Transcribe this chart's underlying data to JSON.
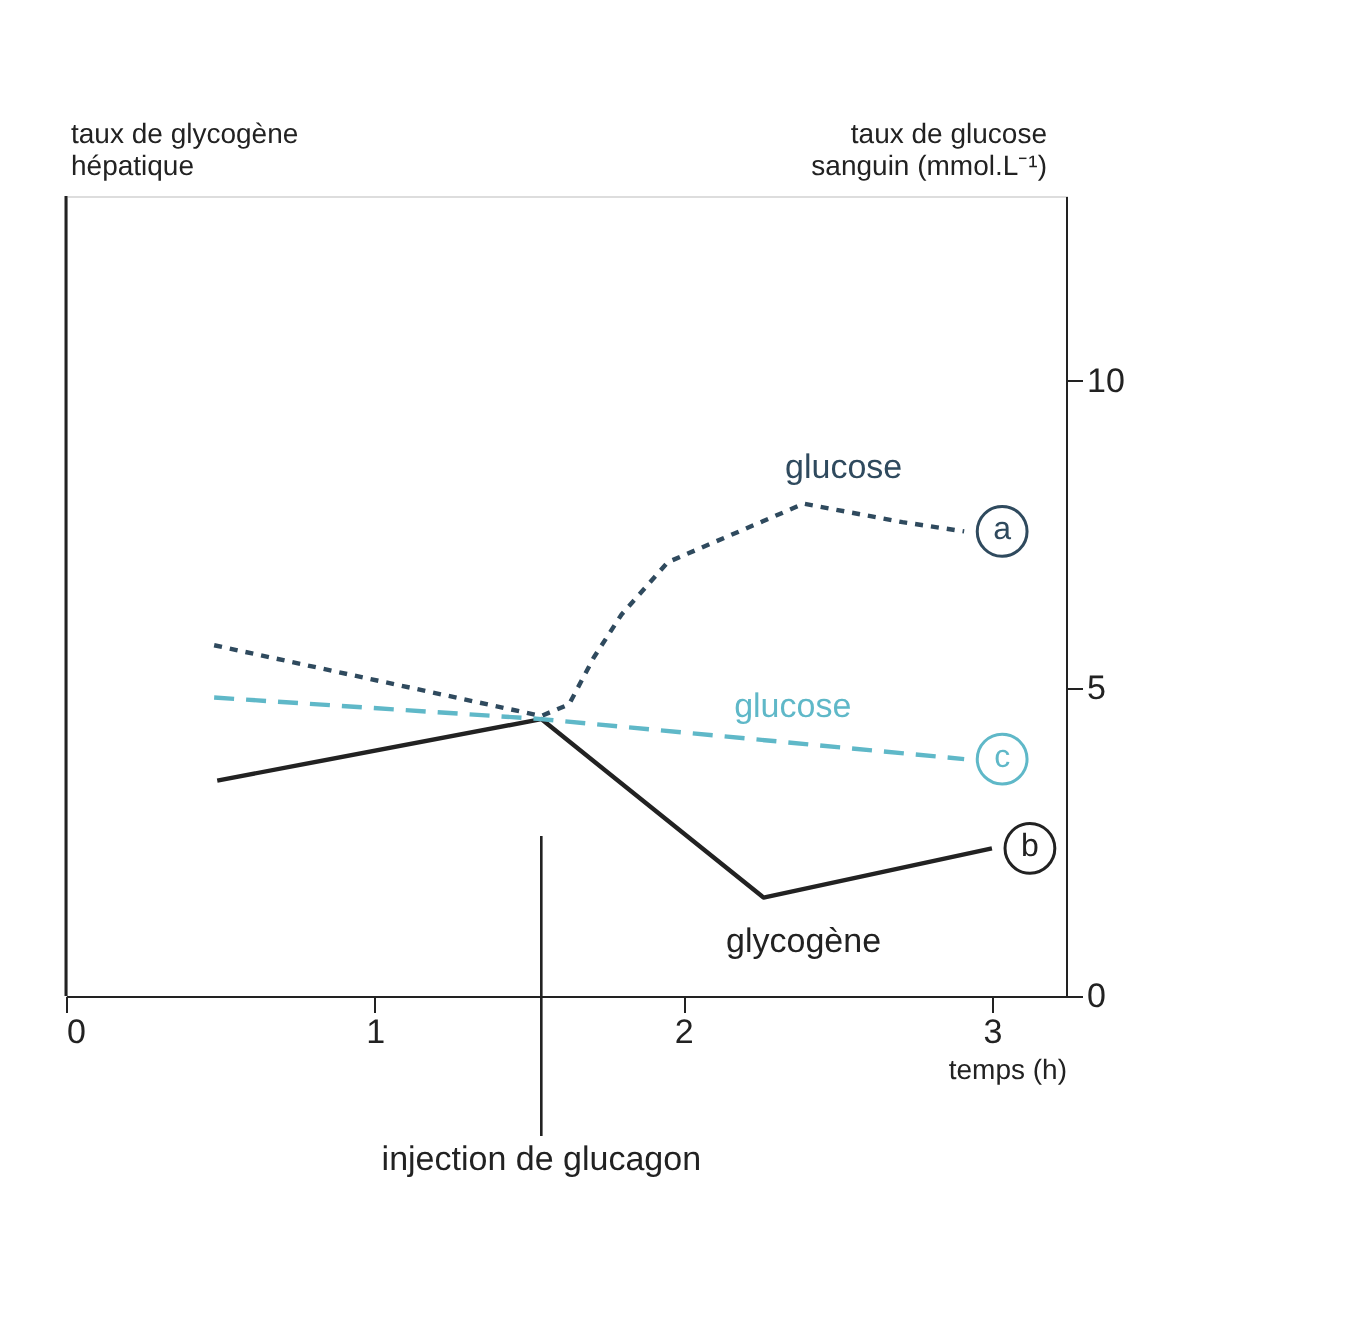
{
  "chart_data": {
    "type": "line",
    "xlabel": "temps (h)",
    "ylabel": "taux de glucose\nsanguin (mmol.L⁻¹)",
    "y2label": "taux de glycogène\nhépatique",
    "xlim": [
      0,
      3.24
    ],
    "xticks": [
      0,
      1,
      2,
      3
    ],
    "ylim": [
      0,
      13
    ],
    "yticks": [
      0,
      5,
      10
    ],
    "grid": false,
    "series": [
      {
        "name": "a",
        "color": "#2f4a5e",
        "line_style": "dotted",
        "x": [
          0.48,
          1.54,
          1.63,
          1.71,
          1.8,
          1.95,
          2.39,
          2.71,
          2.91
        ],
        "values": [
          5.7,
          4.55,
          4.74,
          5.5,
          6.2,
          7.05,
          8.0,
          7.7,
          7.55
        ]
      },
      {
        "name": "b",
        "color": "#222222",
        "line_style": "solid",
        "x": [
          0.49,
          1.54,
          2.26,
          3.0
        ],
        "values": [
          3.5,
          4.5,
          1.6,
          2.4
        ]
      },
      {
        "name": "c",
        "color": "#5fb8c8",
        "line_style": "dashed",
        "x": [
          0.48,
          1.54,
          2.91
        ],
        "values": [
          4.85,
          4.5,
          3.85
        ]
      }
    ],
    "ref_lines": [
      {
        "axis": "x",
        "value": 1.54,
        "label": "injection de glucagon",
        "color": "#222222"
      }
    ],
    "annotations": [
      "glucose",
      "glucose",
      "glycogène"
    ]
  }
}
